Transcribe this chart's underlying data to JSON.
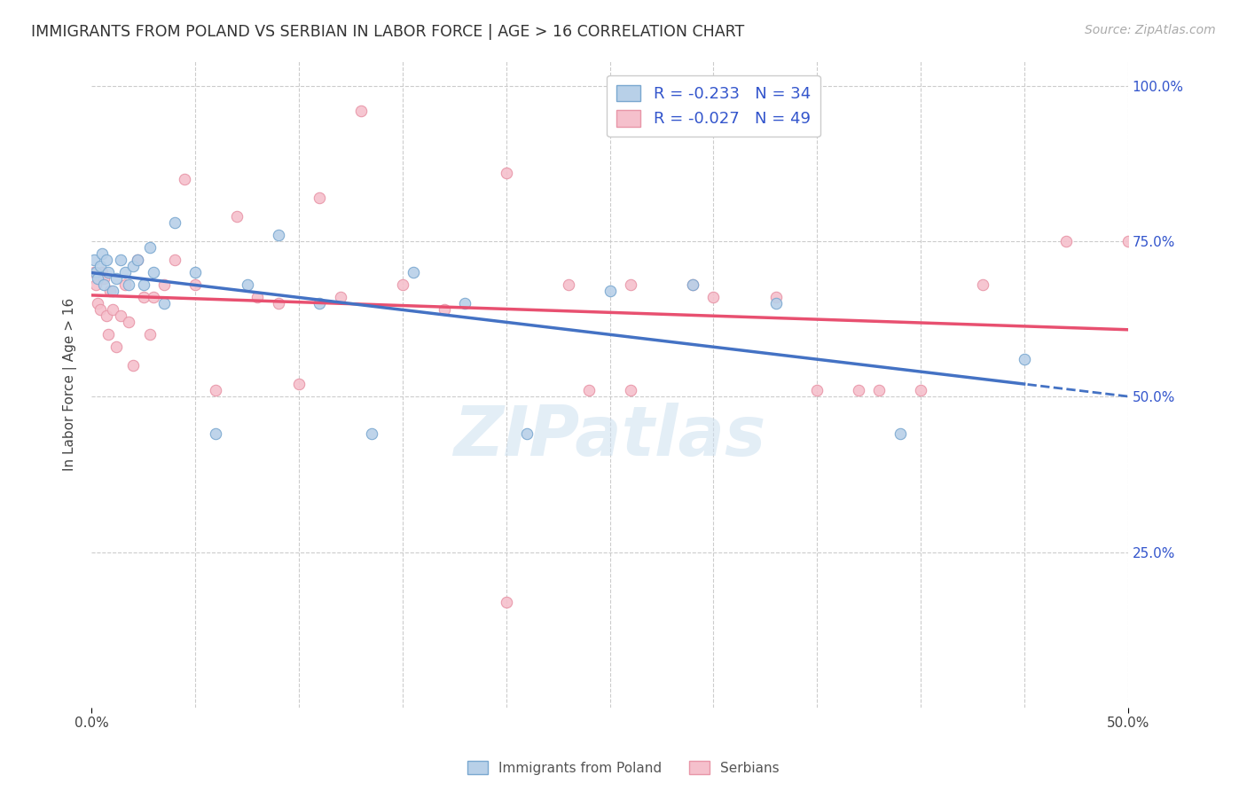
{
  "title": "IMMIGRANTS FROM POLAND VS SERBIAN IN LABOR FORCE | AGE > 16 CORRELATION CHART",
  "source": "Source: ZipAtlas.com",
  "ylabel": "In Labor Force | Age > 16",
  "xlim": [
    0.0,
    0.5
  ],
  "ylim": [
    0.0,
    1.04
  ],
  "background_color": "#ffffff",
  "grid_color": "#cccccc",
  "poland_color": "#b8d0e8",
  "serbia_color": "#f5c0cc",
  "poland_edge_color": "#7aA8d0",
  "serbia_edge_color": "#e896a8",
  "trend_poland_color": "#4472c4",
  "trend_serbia_color": "#e85070",
  "legend_text_color": "#3355cc",
  "tick_color": "#3355cc",
  "R_poland": -0.233,
  "N_poland": 34,
  "R_serbia": -0.027,
  "N_serbia": 49,
  "poland_x": [
    0.001,
    0.002,
    0.003,
    0.004,
    0.005,
    0.006,
    0.007,
    0.008,
    0.01,
    0.012,
    0.014,
    0.016,
    0.018,
    0.02,
    0.022,
    0.025,
    0.028,
    0.03,
    0.035,
    0.04,
    0.05,
    0.06,
    0.075,
    0.09,
    0.11,
    0.135,
    0.155,
    0.18,
    0.21,
    0.25,
    0.29,
    0.33,
    0.39,
    0.45
  ],
  "poland_y": [
    0.72,
    0.7,
    0.69,
    0.71,
    0.73,
    0.68,
    0.72,
    0.7,
    0.67,
    0.69,
    0.72,
    0.7,
    0.68,
    0.71,
    0.72,
    0.68,
    0.74,
    0.7,
    0.65,
    0.78,
    0.7,
    0.44,
    0.68,
    0.76,
    0.65,
    0.44,
    0.7,
    0.65,
    0.44,
    0.67,
    0.68,
    0.65,
    0.44,
    0.56
  ],
  "serbia_x": [
    0.001,
    0.002,
    0.003,
    0.004,
    0.005,
    0.006,
    0.007,
    0.008,
    0.009,
    0.01,
    0.012,
    0.014,
    0.016,
    0.018,
    0.02,
    0.022,
    0.025,
    0.028,
    0.03,
    0.035,
    0.04,
    0.045,
    0.05,
    0.06,
    0.07,
    0.08,
    0.09,
    0.1,
    0.11,
    0.12,
    0.13,
    0.15,
    0.17,
    0.2,
    0.23,
    0.26,
    0.29,
    0.33,
    0.37,
    0.4,
    0.2,
    0.24,
    0.26,
    0.3,
    0.35,
    0.38,
    0.43,
    0.47,
    0.5
  ],
  "serbia_y": [
    0.7,
    0.68,
    0.65,
    0.64,
    0.7,
    0.69,
    0.63,
    0.6,
    0.67,
    0.64,
    0.58,
    0.63,
    0.68,
    0.62,
    0.55,
    0.72,
    0.66,
    0.6,
    0.66,
    0.68,
    0.72,
    0.85,
    0.68,
    0.51,
    0.79,
    0.66,
    0.65,
    0.52,
    0.82,
    0.66,
    0.96,
    0.68,
    0.64,
    0.86,
    0.68,
    0.51,
    0.68,
    0.66,
    0.51,
    0.51,
    0.17,
    0.51,
    0.68,
    0.66,
    0.51,
    0.51,
    0.68,
    0.75,
    0.75
  ],
  "watermark": "ZIPatlas",
  "marker_size": 80
}
